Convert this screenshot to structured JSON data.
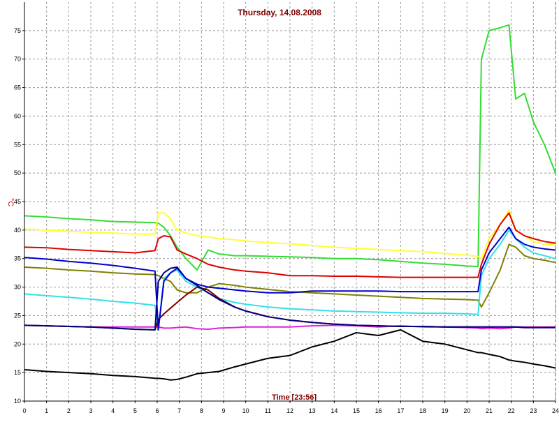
{
  "chart_data": {
    "type": "line",
    "title": "Thursday, 14.08.2008",
    "x_label": "Time [23:56]",
    "y_label": "°C",
    "x": [
      0,
      1,
      2,
      3,
      4,
      5,
      5.9,
      6.05,
      6.3,
      6.6,
      6.9,
      7.3,
      7.8,
      8.3,
      8.8,
      9.5,
      10,
      11,
      12,
      13,
      14,
      15,
      16,
      17,
      18,
      19,
      20,
      20.5,
      20.65,
      21,
      21.5,
      21.9,
      22.2,
      22.6,
      23,
      23.5,
      24
    ],
    "xlim": [
      0,
      24
    ],
    "xticks": [
      0,
      1,
      2,
      3,
      4,
      5,
      6,
      7,
      8,
      9,
      10,
      11,
      12,
      13,
      14,
      15,
      16,
      17,
      18,
      19,
      20,
      21,
      22,
      23,
      24
    ],
    "ylim": [
      10,
      80
    ],
    "yticks": [
      10,
      15,
      20,
      25,
      30,
      35,
      40,
      45,
      50,
      55,
      60,
      65,
      70,
      75
    ],
    "grid": true,
    "series": [
      {
        "color": "#33dd33",
        "values": [
          42.5,
          42.3,
          42,
          41.8,
          41.5,
          41.4,
          41.3,
          41.2,
          40.5,
          39,
          37,
          35,
          33,
          36.5,
          35.8,
          35.5,
          35.5,
          35.4,
          35.3,
          35.2,
          35,
          35,
          34.8,
          34.5,
          34.2,
          34,
          33.7,
          33.6,
          70,
          75,
          75.5,
          76,
          63,
          64,
          59,
          55,
          50
        ]
      },
      {
        "color": "#ffff33",
        "values": [
          40.2,
          40,
          39.8,
          39.6,
          39.5,
          39.3,
          39.3,
          43,
          43,
          42,
          40,
          39.5,
          39,
          38.8,
          38.5,
          38.3,
          38.1,
          37.8,
          37.6,
          37.3,
          37,
          36.8,
          36.6,
          36.4,
          36.2,
          35.9,
          35.6,
          35.4,
          35,
          38.5,
          41,
          43.5,
          40,
          39,
          38,
          37.5,
          37.5
        ]
      },
      {
        "color": "#dd0000",
        "values": [
          37,
          36.9,
          36.6,
          36.4,
          36.2,
          36,
          36.4,
          38.5,
          39,
          38.8,
          36.5,
          35.8,
          35,
          34,
          33.5,
          33,
          32.8,
          32.5,
          32,
          32,
          31.9,
          31.9,
          31.8,
          31.7,
          31.7,
          31.7,
          31.7,
          31.7,
          34,
          37.5,
          41,
          43,
          40,
          39,
          38.5,
          38,
          37.7
        ]
      },
      {
        "color": "#808000",
        "values": [
          33.5,
          33.3,
          33,
          32.8,
          32.5,
          32.3,
          32.2,
          32,
          31.5,
          31,
          29.5,
          29,
          29,
          30,
          30.6,
          30.3,
          30,
          29.6,
          29.2,
          29,
          28.8,
          28.6,
          28.4,
          28.2,
          28,
          27.9,
          27.8,
          27.7,
          26.5,
          29,
          33,
          37.5,
          37,
          35.5,
          35,
          34.7,
          34.3
        ]
      },
      {
        "color": "#33e0e8",
        "values": [
          28.8,
          28.5,
          28.2,
          27.9,
          27.5,
          27.2,
          26.8,
          22.5,
          31.5,
          32.5,
          33,
          31,
          30,
          29,
          28,
          27.3,
          27,
          26.5,
          26.2,
          26,
          25.8,
          25.7,
          25.6,
          25.5,
          25.4,
          25.4,
          25.3,
          25.2,
          32,
          35,
          37.5,
          40,
          38.5,
          37,
          36,
          35.5,
          35
        ]
      },
      {
        "color": "#dd22dd",
        "values": [
          23.3,
          23.2,
          23.1,
          23,
          23,
          23,
          23,
          23,
          22.8,
          22.8,
          22.9,
          23,
          22.7,
          22.6,
          22.8,
          22.9,
          23,
          23,
          23,
          23.2,
          23.3,
          23.2,
          23,
          23.2,
          23,
          23,
          22.9,
          22.8,
          22.7,
          22.8,
          22.7,
          22.8,
          23,
          23,
          23,
          23,
          23
        ]
      },
      {
        "color": "#800000",
        "values": [
          23.3,
          23.2,
          23.1,
          23,
          22.8,
          22.6,
          22.5,
          24.3,
          25.3,
          26.3,
          27.3,
          28.6,
          30,
          29.5,
          28,
          26.5,
          25.8,
          24.8,
          24.2,
          23.8,
          23.5,
          23.3,
          23.2,
          23.1,
          23.1,
          23,
          23,
          23,
          23,
          23,
          23,
          23,
          23,
          22.9,
          22.9,
          22.9,
          22.9
        ]
      },
      {
        "color": "#000080",
        "values": [
          23.3,
          23.2,
          23.1,
          23,
          22.8,
          22.6,
          22.5,
          31,
          32.5,
          33.3,
          33.5,
          31.5,
          30.3,
          29,
          27.8,
          26.5,
          25.8,
          24.8,
          24.2,
          23.8,
          23.5,
          23.3,
          23.2,
          23.1,
          23.1,
          23,
          23,
          23,
          23,
          23,
          23,
          23,
          23,
          22.9,
          22.9,
          22.9,
          22.9
        ]
      },
      {
        "color": "#0000cc",
        "values": [
          35.2,
          34.9,
          34.5,
          34.2,
          33.8,
          33.3,
          32.8,
          22.5,
          31,
          32.5,
          33.3,
          31.5,
          30.5,
          30,
          29.8,
          29.5,
          29.3,
          29,
          29,
          29.3,
          29.3,
          29.3,
          29.3,
          29.2,
          29.2,
          29.2,
          29.2,
          29.2,
          33,
          36,
          38.5,
          40.5,
          38.5,
          37.5,
          37,
          36.7,
          36.5
        ]
      },
      {
        "color": "#000000",
        "values": [
          15.5,
          15.2,
          15,
          14.8,
          14.5,
          14.3,
          14,
          14,
          13.9,
          13.7,
          13.8,
          14.2,
          14.8,
          15,
          15.2,
          16,
          16.5,
          17.5,
          18,
          19.5,
          20.5,
          22,
          21.5,
          22.5,
          20.5,
          20,
          19,
          18.5,
          18.5,
          18.2,
          17.8,
          17.2,
          17,
          16.8,
          16.5,
          16.2,
          15.8
        ]
      }
    ]
  }
}
